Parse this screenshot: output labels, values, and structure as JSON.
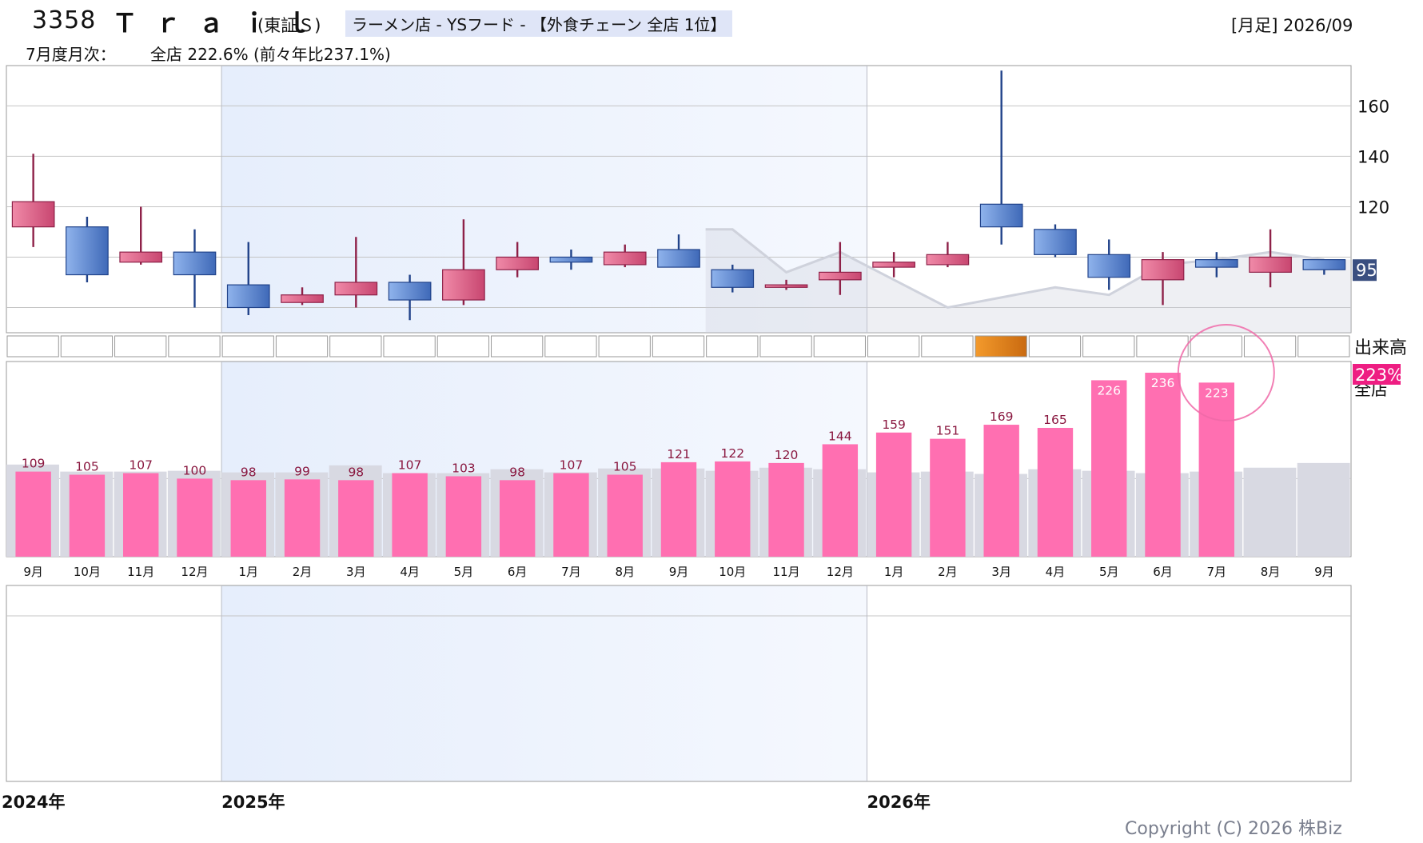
{
  "header": {
    "code": "3358",
    "name": "Ｔｒａｉｌ",
    "market": "(東証Ｓ)",
    "industry": "ラーメン店 - YSフード - 【外食チェーン 全店 1位】",
    "period": "[月足] 2026/09",
    "summary_label": "7月度月次：",
    "summary_value": "全店 222.6% (前々年比237.1%)"
  },
  "copyright": "Copyright (C) 2026 株Biz",
  "colors": {
    "up": "#e8527f",
    "down": "#4f7ac4",
    "bar": "#ff6fb1",
    "gray_bar": "#d8d9e2",
    "bg_band": "#eaf1fd",
    "badge_price": "#3a4f80",
    "badge_pct": "#ee1d82",
    "volume_highlight": "#f08a1c"
  },
  "chart_data": [
    {
      "type": "candlestick",
      "title": "",
      "months": [
        "9月",
        "10月",
        "11月",
        "12月",
        "1月",
        "2月",
        "3月",
        "4月",
        "5月",
        "6月",
        "7月",
        "8月",
        "9月",
        "10月",
        "11月",
        "12月",
        "1月",
        "2月",
        "3月",
        "4月",
        "5月",
        "6月",
        "7月",
        "8月",
        "9月"
      ],
      "years": [
        {
          "label": "2024年",
          "start_index": 0
        },
        {
          "label": "2025年",
          "start_index": 4
        },
        {
          "label": "2026年",
          "start_index": 16
        }
      ],
      "ohlc": [
        {
          "o": 112,
          "h": 141,
          "l": 104,
          "c": 122
        },
        {
          "o": 112,
          "h": 116,
          "l": 90,
          "c": 93
        },
        {
          "o": 98,
          "h": 120,
          "l": 97,
          "c": 102
        },
        {
          "o": 102,
          "h": 111,
          "l": 80,
          "c": 93
        },
        {
          "o": 89,
          "h": 106,
          "l": 77,
          "c": 80
        },
        {
          "o": 82,
          "h": 88,
          "l": 81,
          "c": 85
        },
        {
          "o": 85,
          "h": 108,
          "l": 80,
          "c": 90
        },
        {
          "o": 90,
          "h": 93,
          "l": 75,
          "c": 83
        },
        {
          "o": 83,
          "h": 115,
          "l": 81,
          "c": 95
        },
        {
          "o": 95,
          "h": 106,
          "l": 92,
          "c": 100
        },
        {
          "o": 100,
          "h": 103,
          "l": 95,
          "c": 98
        },
        {
          "o": 97,
          "h": 105,
          "l": 96,
          "c": 102
        },
        {
          "o": 103,
          "h": 109,
          "l": 96,
          "c": 96
        },
        {
          "o": 95,
          "h": 97,
          "l": 86,
          "c": 88
        },
        {
          "o": 88,
          "h": 91,
          "l": 87,
          "c": 89
        },
        {
          "o": 91,
          "h": 106,
          "l": 85,
          "c": 94
        },
        {
          "o": 96,
          "h": 102,
          "l": 92,
          "c": 98
        },
        {
          "o": 97,
          "h": 106,
          "l": 96,
          "c": 101
        },
        {
          "o": 121,
          "h": 174,
          "l": 105,
          "c": 112
        },
        {
          "o": 111,
          "h": 113,
          "l": 100,
          "c": 101
        },
        {
          "o": 101,
          "h": 107,
          "l": 87,
          "c": 92
        },
        {
          "o": 91,
          "h": 102,
          "l": 81,
          "c": 99
        },
        {
          "o": 99,
          "h": 102,
          "l": 92,
          "c": 96
        },
        {
          "o": 94,
          "h": 111,
          "l": 88,
          "c": 100
        },
        {
          "o": 99,
          "h": 99,
          "l": 93,
          "c": 95
        }
      ],
      "comparison_line": [
        null,
        null,
        null,
        null,
        null,
        null,
        null,
        null,
        null,
        null,
        null,
        null,
        null,
        111,
        94,
        102,
        91,
        80,
        84,
        88,
        85,
        97,
        99,
        102,
        99
      ],
      "ylim": [
        70,
        176
      ],
      "yticks": [
        160,
        140,
        120
      ],
      "last_price_label": "95"
    },
    {
      "type": "bar",
      "title": "",
      "volume_label": "出来高",
      "volume_highlight_index": 18,
      "series_label": "全店",
      "badge_label": "223%",
      "monthly_all_store_pct": [
        109,
        105,
        107,
        100,
        98,
        99,
        98,
        107,
        103,
        98,
        107,
        105,
        121,
        122,
        120,
        144,
        159,
        151,
        169,
        165,
        226,
        236,
        223,
        null,
        null
      ],
      "prior_year_pct": [
        118,
        109,
        109,
        110,
        108,
        108,
        117,
        107,
        107,
        112,
        108,
        113,
        113,
        110,
        114,
        112,
        108,
        109,
        106,
        112,
        110,
        107,
        109,
        114,
        120
      ],
      "ylim": [
        0,
        250
      ]
    }
  ]
}
